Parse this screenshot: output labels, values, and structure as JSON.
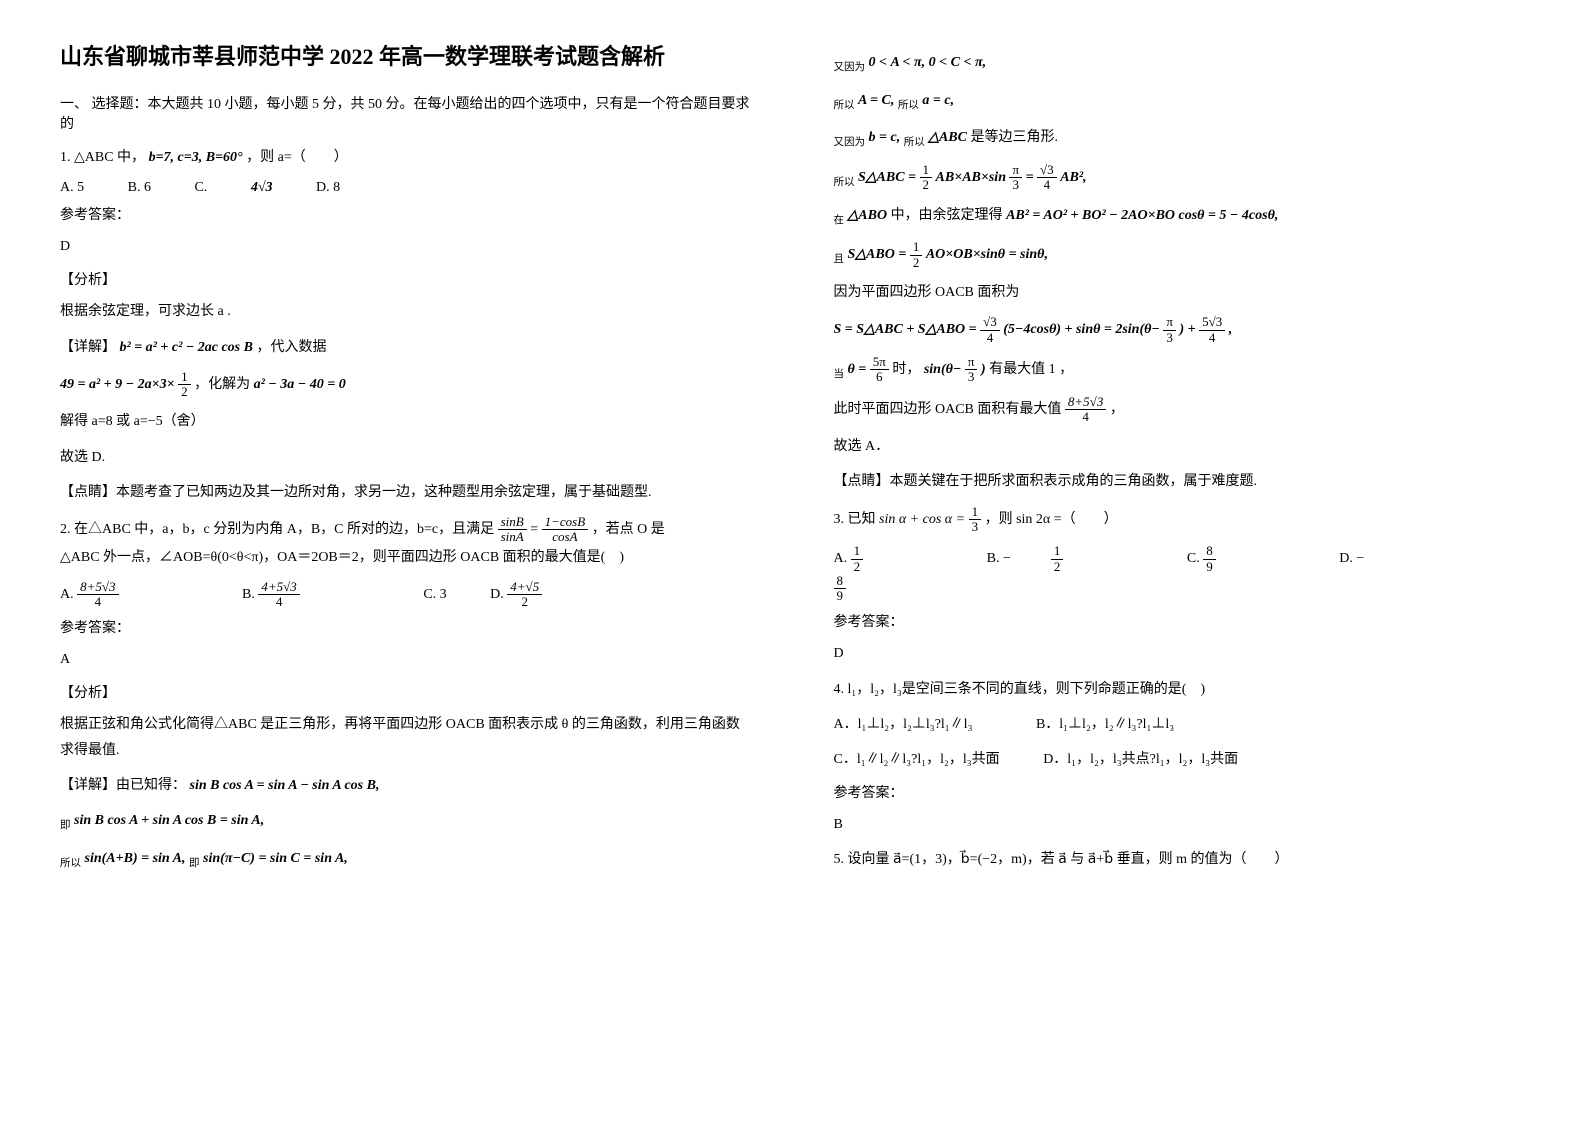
{
  "title": "山东省聊城市莘县师范中学 2022 年高一数学理联考试题含解析",
  "section1_heading": "一、 选择题：本大题共 10 小题，每小题 5 分，共 50 分。在每小题给出的四个选项中，只有是一个符合题目要求的",
  "q1": {
    "stem_prefix": "1. △ABC 中，",
    "cond": "b=7, c=3, B=60°",
    "stem_suffix": "，则 a=（　　）",
    "optA": "A. 5",
    "optB": "B. 6",
    "optC_prefix": "C. ",
    "optC_val": "4√3",
    "optD": "D. 8",
    "ans_label": "参考答案：",
    "ans": "D",
    "analysis_label": "【分析】",
    "analysis1": "根据余弦定理，可求边长 a .",
    "detail_label": "【详解】",
    "detail_eq1": "b² = a² + c² − 2ac cos B",
    "detail_suffix1": "，代入数据",
    "detail_eq2a": "49 = a² + 9 − 2a×3×",
    "detail_eq2b_num": "1",
    "detail_eq2b_den": "2",
    "detail_suffix2": "，化解为",
    "detail_eq3": "a² − 3a − 40 = 0",
    "result": "解得 a=8 或 a=−5（舍）",
    "choice": "故选 D.",
    "hint": "【点睛】本题考查了已知两边及其一边所对角，求另一边，这种题型用余弦定理，属于基础题型."
  },
  "q2": {
    "stem1": "2. 在△ABC 中，a，b，c 分别为内角 A，B，C 所对的边，b=c，且满足",
    "frac1_num": "sinB",
    "frac1_den": "sinA",
    "eq": " = ",
    "frac2_num": "1−cosB",
    "frac2_den": "cosA",
    "stem1b": "，若点 O 是",
    "stem2": "△ABC 外一点，∠AOB=θ(0<θ<π)，OA＝2OB＝2，则平面四边形 OACB 面积的最大值是(　)",
    "optA_num": "8+5√3",
    "optA_den": "4",
    "optB_num": "4+5√3",
    "optB_den": "4",
    "optC": "C. 3",
    "optD_num": "4+√5",
    "optD_den": "2",
    "ans_label": "参考答案：",
    "ans": "A",
    "analysis_label": "【分析】",
    "analysis1": "根据正弦和角公式化简得△ABC 是正三角形，再将平面四边形 OACB 面积表示成 θ 的三角函数，利用三角函数求得最值.",
    "detail_label": "【详解】由已知得：",
    "detail_eq1": "sin B cos A = sin A − sin A cos B,",
    "line_ji": "即",
    "detail_eq2": "sin B cos A + sin A cos B = sin A,",
    "line_so": "所以",
    "detail_eq3": "sin(A+B) = sin A,",
    "line_ji2": "即",
    "detail_eq4": "sin(π−C) = sin C = sin A,"
  },
  "col2": {
    "l1a": "又因为",
    "l1b": "0 < A < π, 0 < C < π,",
    "l2a": "所以",
    "l2b": "A = C,",
    "l2c": "所以",
    "l2d": "a = c,",
    "l3a": "又因为",
    "l3b": "b = c,",
    "l3c": "所以",
    "l3d": "△ABC",
    "l3e": "是等边三角形.",
    "l4a": "所以",
    "l4b_left": "S△ABC = ",
    "l4b_f1n": "1",
    "l4b_f1d": "2",
    "l4b_mid": " AB×AB×sin",
    "l4b_f2n": "π",
    "l4b_f2d": "3",
    "l4b_eq": " = ",
    "l4b_f3n": "√3",
    "l4b_f3d": "4",
    "l4b_right": " AB²,",
    "l5a": "在",
    "l5b": "△ABO",
    "l5c": "中，由余弦定理得",
    "l5d": "AB² = AO² + BO² − 2AO×BO cosθ = 5 − 4cosθ,",
    "l6a": "且",
    "l6b_left": "S△ABO = ",
    "l6b_f1n": "1",
    "l6b_f1d": "2",
    "l6b_right": " AO×OB×sinθ = sinθ,",
    "l7": "因为平面四边形 OACB 面积为",
    "l8_left": "S = S△ABC + S△ABO = ",
    "l8_f1n": "√3",
    "l8_f1d": "4",
    "l8_mid1": "(5−4cosθ) + sinθ = 2sin(θ−",
    "l8_f2n": "π",
    "l8_f2d": "3",
    "l8_mid2": ") + ",
    "l8_f3n": "5√3",
    "l8_f3d": "4",
    "l8_right": ",",
    "l9a": "当",
    "l9_f1n": "5π",
    "l9_f1d": "6",
    "l9b": " 时，",
    "l9c": "sin(θ−",
    "l9_f2n": "π",
    "l9_f2d": "3",
    "l9d": ")",
    "l9e": " 有最大值 1 ，",
    "l10a": "此时平面四边形 OACB 面积有最大值",
    "l10_fn": "8+5√3",
    "l10_fd": "4",
    "l10b": "，",
    "l11": "故选 A．",
    "hint": "【点睛】本题关键在于把所求面积表示成角的三角函数，属于难度题."
  },
  "q3": {
    "stem_a": "3. 已知",
    "stem_eq": "sin α + cos α = ",
    "stem_fn": "1",
    "stem_fd": "3",
    "stem_b": "，则 sin 2α =（　　）",
    "optA_n": "1",
    "optA_d": "2",
    "optB_pre": "−",
    "optB_n": "1",
    "optB_d": "2",
    "optC_n": "8",
    "optC_d": "9",
    "optD_pre": "−",
    "optD_n": "8",
    "optD_d": "9",
    "ans_label": "参考答案：",
    "ans": "D"
  },
  "q4": {
    "stem": "4. l₁，l₂，l₃是空间三条不同的直线，则下列命题正确的是(　)",
    "optA": "A．l₁⊥l₂，l₂⊥l₃?l₁∥l₃",
    "optB": "B．l₁⊥l₂，l₂∥l₃?l₁⊥l₃",
    "optC": "C．l₁∥l₂∥l₃?l₁，l₂，l₃共面",
    "optD": "D．l₁，l₂，l₃共点?l₁，l₂，l₃共面",
    "ans_label": "参考答案：",
    "ans": "B"
  },
  "q5": {
    "stem": "5. 设向量 a⃗=(1，3)，b⃗=(−2，m)，若 a⃗ 与 a⃗+b⃗ 垂直，则 m 的值为（　　）"
  }
}
